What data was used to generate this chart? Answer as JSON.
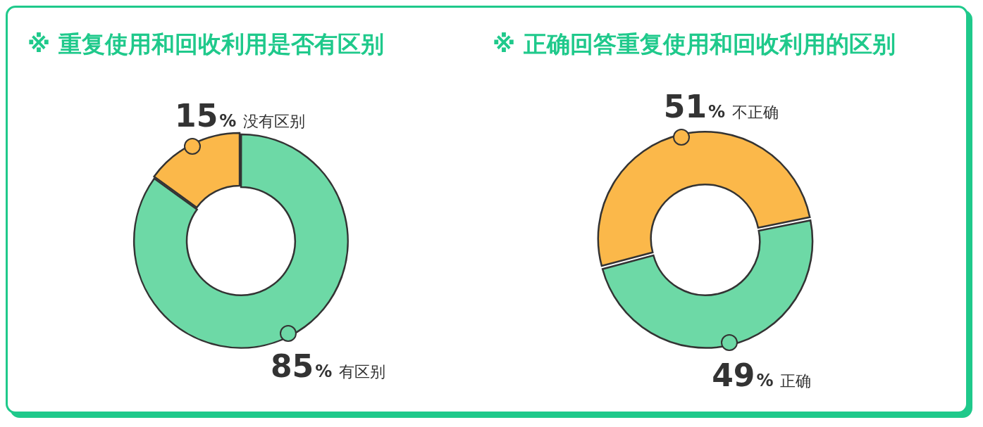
{
  "chart_data": [
    {
      "type": "donut",
      "title": "※ 重复使用和回收利用是否有区别",
      "categories": [
        "有区别",
        "没有区别"
      ],
      "values": [
        85,
        15
      ],
      "value_labels": [
        "85%",
        "15%"
      ],
      "colors": [
        "#6dd9a6",
        "#fbb84a"
      ],
      "legend": false
    },
    {
      "type": "donut",
      "title": "※ 正确回答重复使用和回收利用的区别",
      "categories": [
        "不正确",
        "正确"
      ],
      "values": [
        51,
        49
      ],
      "value_labels": [
        "51%",
        "49%"
      ],
      "colors": [
        "#fbb84a",
        "#6dd9a6"
      ],
      "legend": false
    }
  ]
}
